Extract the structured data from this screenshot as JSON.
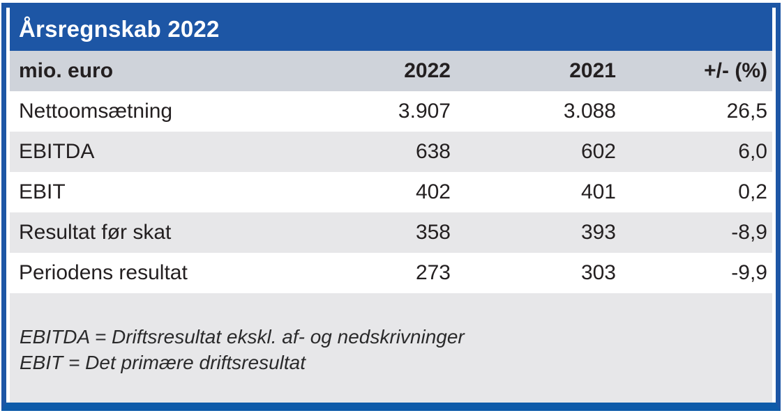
{
  "title": "Årsregnskab 2022",
  "table": {
    "unit_label": "mio. euro",
    "columns": [
      "2022",
      "2021",
      "+/- (%)"
    ],
    "rows": [
      {
        "label": "Nettoomsætning",
        "values": [
          "3.907",
          "3.088",
          "26,5"
        ]
      },
      {
        "label": "EBITDA",
        "values": [
          "638",
          "602",
          "6,0"
        ]
      },
      {
        "label": "EBIT",
        "values": [
          "402",
          "401",
          "0,2"
        ]
      },
      {
        "label": "Resultat før skat",
        "values": [
          "358",
          "393",
          "-8,9"
        ]
      },
      {
        "label": "Periodens resultat",
        "values": [
          "273",
          "303",
          "-9,9"
        ]
      }
    ]
  },
  "footnotes": [
    "EBITDA = Driftsresultat ekskl. af- og nedskrivninger",
    "EBIT = Det primære driftsresultat"
  ],
  "colors": {
    "frame_blue": "#1D56A5",
    "bottom_bar_blue": "#0E5BA9",
    "header_row_gray": "#CFD3DA",
    "shade_row_gray": "#E7E7E9",
    "text": "#231F20",
    "title_text": "#FFFFFF"
  }
}
